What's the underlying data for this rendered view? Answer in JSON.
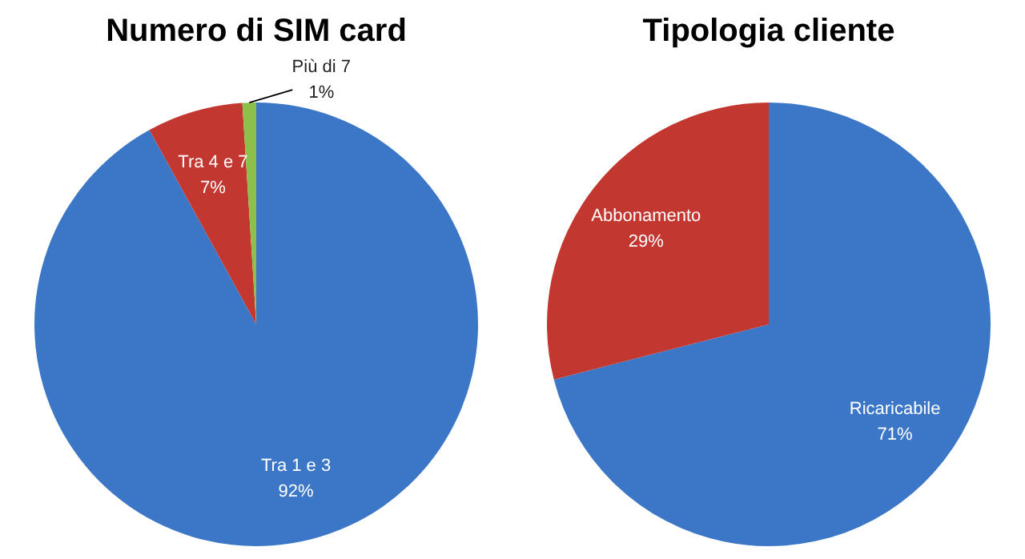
{
  "chart_data": [
    {
      "type": "pie",
      "title": "Numero di SIM card",
      "categories": [
        "Tra 1 e 3",
        "Tra 4 e 7",
        "Più di 7"
      ],
      "values": [
        92,
        7,
        1
      ],
      "colors": [
        "#3b77c6",
        "#c2372f",
        "#8cc04a"
      ],
      "value_labels": [
        "92%",
        "7%",
        "1%"
      ],
      "legend": false
    },
    {
      "type": "pie",
      "title": "Tipologia cliente",
      "categories": [
        "Ricaricabile",
        "Abbonamento"
      ],
      "values": [
        71,
        29
      ],
      "colors": [
        "#3b77c6",
        "#c2372f"
      ],
      "value_labels": [
        "71%",
        "29%"
      ],
      "legend": false
    }
  ]
}
